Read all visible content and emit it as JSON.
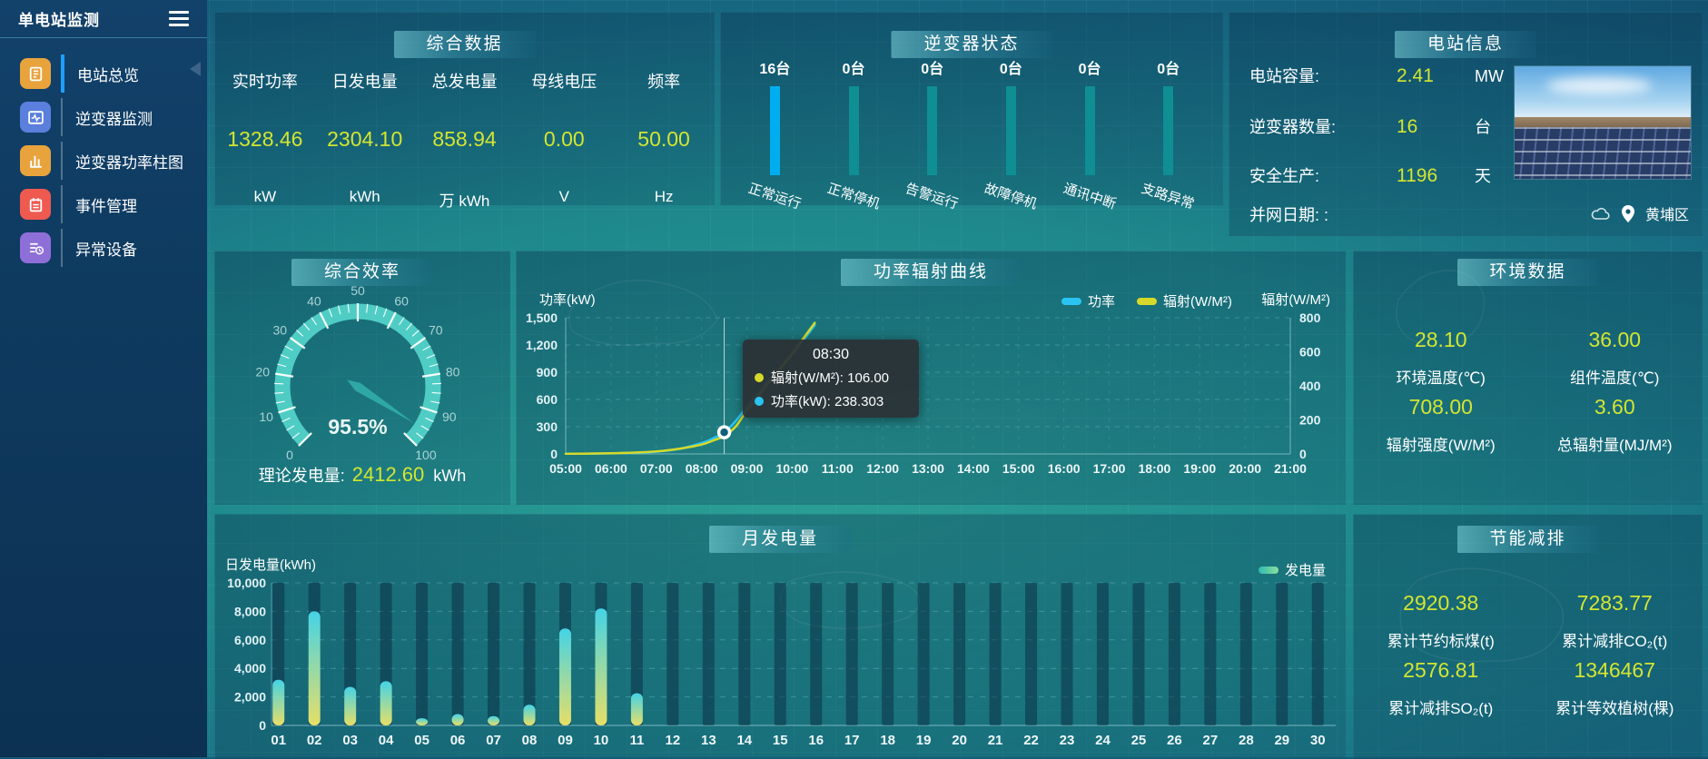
{
  "app": {
    "title": "单电站监测"
  },
  "sidebar": {
    "items": [
      {
        "label": "电站总览",
        "icon": "station-overview",
        "color": "#e8a33d",
        "active": true
      },
      {
        "label": "逆变器监测",
        "icon": "inverter-monitor",
        "color": "#5a7fdd",
        "active": false
      },
      {
        "label": "逆变器功率柱图",
        "icon": "power-bar-chart",
        "color": "#e8a33d",
        "active": false
      },
      {
        "label": "事件管理",
        "icon": "event-management",
        "color": "#ef5a50",
        "active": false
      },
      {
        "label": "异常设备",
        "icon": "abnormal-device",
        "color": "#8e6fd8",
        "active": false
      }
    ]
  },
  "summary": {
    "title": "综合数据",
    "metrics": [
      {
        "label": "实时功率",
        "value": "1328.46",
        "unit": "kW"
      },
      {
        "label": "日发电量",
        "value": "2304.10",
        "unit": "kWh"
      },
      {
        "label": "总发电量",
        "value": "858.94",
        "unit": "万 kWh"
      },
      {
        "label": "母线电压",
        "value": "0.00",
        "unit": "V"
      },
      {
        "label": "频率",
        "value": "50.00",
        "unit": "Hz"
      }
    ]
  },
  "inverter_status": {
    "title": "逆变器状态",
    "highlight_color": "#00aeef",
    "normal_color": "#0f8e93",
    "items": [
      {
        "count": "16台",
        "label": "正常运行",
        "highlight": true
      },
      {
        "count": "0台",
        "label": "正常停机",
        "highlight": false
      },
      {
        "count": "0台",
        "label": "告警运行",
        "highlight": false
      },
      {
        "count": "0台",
        "label": "故障停机",
        "highlight": false
      },
      {
        "count": "0台",
        "label": "通讯中断",
        "highlight": false
      },
      {
        "count": "0台",
        "label": "支路异常",
        "highlight": false
      }
    ]
  },
  "station_info": {
    "title": "电站信息",
    "rows": [
      {
        "label": "电站容量:",
        "value": "2.41",
        "unit": "MW"
      },
      {
        "label": "逆变器数量:",
        "value": "16",
        "unit": "台"
      },
      {
        "label": "安全生产:",
        "value": "1196",
        "unit": "天"
      },
      {
        "label": "并网日期:  :",
        "value": "",
        "unit": ""
      }
    ],
    "district": "黄埔区"
  },
  "efficiency": {
    "title": "综合效率",
    "value_label": "95.5%",
    "theory": {
      "label": "理论发电量:",
      "value": "2412.60",
      "unit": "kWh"
    }
  },
  "power_curve": {
    "title": "功率辐射曲线",
    "y_left_title": "功率(kW)",
    "y_right_title": "辐射(W/M²)",
    "legend": [
      {
        "label": "功率",
        "color": "#29c4f2"
      },
      {
        "label": "辐射(W/M²)",
        "color": "#d6d929"
      }
    ],
    "tooltip": {
      "time": "08:30",
      "items": [
        {
          "color": "#d6d929",
          "text": "辐射(W/M²): 106.00"
        },
        {
          "color": "#29c4f2",
          "text": "功率(kW): 238.303"
        }
      ]
    }
  },
  "environment": {
    "title": "环境数据",
    "metrics": [
      {
        "value": "28.10",
        "label": "环境温度(℃)"
      },
      {
        "value": "36.00",
        "label": "组件温度(℃)"
      },
      {
        "value": "708.00",
        "label": "辐射强度(W/M²)"
      },
      {
        "value": "3.60",
        "label": "总辐射量(MJ/M²)"
      }
    ]
  },
  "monthly": {
    "title": "月发电量",
    "y_title": "日发电量(kWh)",
    "legend_label": "发电量"
  },
  "saving": {
    "title": "节能减排",
    "metrics": [
      {
        "value": "2920.38",
        "label": "累计节约标煤(t)"
      },
      {
        "value": "7283.77",
        "label": "累计减排CO₂(t)"
      },
      {
        "value": "2576.81",
        "label": "累计减排SO₂(t)"
      },
      {
        "value": "1346467",
        "label": "累计等效植树(棵)"
      }
    ]
  },
  "chart_data": [
    {
      "id": "efficiency_gauge",
      "type": "gauge",
      "title": "综合效率",
      "min": 0,
      "max": 100,
      "value": 95.5,
      "unit": "%",
      "major_tick": 10,
      "minor_tick": 2.5,
      "start_angle": 225,
      "end_angle": -45,
      "band_color": "#4fcdc5",
      "needle_color": "#2fa8a5",
      "labels": [
        "0",
        "10",
        "20",
        "30",
        "40",
        "50",
        "60",
        "70",
        "80",
        "90",
        "100"
      ]
    },
    {
      "id": "power_radiation_curve",
      "type": "line",
      "title": "功率辐射曲线",
      "x_hours": [
        5,
        5.5,
        6,
        6.5,
        7,
        7.5,
        8,
        8.25,
        8.5,
        8.75,
        9,
        9.25,
        9.5,
        9.75,
        10,
        10.25,
        10.5
      ],
      "x_ticks": [
        "05:00",
        "06:00",
        "07:00",
        "08:00",
        "09:00",
        "10:00",
        "11:00",
        "12:00",
        "13:00",
        "14:00",
        "15:00",
        "16:00",
        "17:00",
        "18:00",
        "19:00",
        "20:00",
        "21:00"
      ],
      "series": [
        {
          "name": "功率",
          "axis": "left",
          "color": "#29c4f2",
          "values": [
            2,
            3,
            6,
            12,
            25,
            55,
            120,
            170,
            238.303,
            360,
            520,
            665,
            820,
            955,
            1090,
            1255,
            1420
          ]
        },
        {
          "name": "辐射(W/M²)",
          "axis": "right",
          "color": "#d6d929",
          "values": [
            1,
            2,
            4,
            8,
            15,
            30,
            55,
            78,
            106,
            160,
            255,
            335,
            425,
            505,
            590,
            680,
            770
          ]
        }
      ],
      "y_left": {
        "title": "功率(kW)",
        "min": 0,
        "max": 1500,
        "ticks": [
          "0",
          "300",
          "600",
          "900",
          "1,200",
          "1,500"
        ]
      },
      "y_right": {
        "title": "辐射(W/M²)",
        "min": 0,
        "max": 800,
        "ticks": [
          "0",
          "200",
          "400",
          "600",
          "800"
        ]
      },
      "highlight": {
        "x": 8.5,
        "label": "08:30",
        "power": 238.303,
        "radiation": 106.0
      },
      "grid": true,
      "legend_position": "top"
    },
    {
      "id": "monthly_generation",
      "type": "bar",
      "title": "月发电量",
      "categories": [
        "01",
        "02",
        "03",
        "04",
        "05",
        "06",
        "07",
        "08",
        "09",
        "10",
        "11",
        "12",
        "13",
        "14",
        "15",
        "16",
        "17",
        "18",
        "19",
        "20",
        "21",
        "22",
        "23",
        "24",
        "25",
        "26",
        "27",
        "28",
        "29",
        "30"
      ],
      "values": [
        3200,
        8000,
        2700,
        3100,
        500,
        800,
        650,
        1450,
        6800,
        8200,
        2250,
        0,
        0,
        0,
        0,
        0,
        0,
        0,
        0,
        0,
        0,
        0,
        0,
        0,
        0,
        0,
        0,
        0,
        0,
        0
      ],
      "xlabel": "",
      "ylabel": "日发电量(kWh)",
      "ylim": [
        0,
        10000
      ],
      "y_ticks": [
        "0",
        "2,000",
        "4,000",
        "6,000",
        "8,000",
        "10,000"
      ],
      "bar_gradient": [
        "#45d3e6",
        "#e6df67"
      ],
      "track_color": "rgba(10,42,64,0.5)",
      "legend": "发电量",
      "grid": true
    },
    {
      "id": "inverter_status_bars",
      "type": "bar",
      "title": "逆变器状态",
      "categories": [
        "正常运行",
        "正常停机",
        "告警运行",
        "故障停机",
        "通讯中断",
        "支路异常"
      ],
      "values": [
        16,
        0,
        0,
        0,
        0,
        0
      ],
      "unit": "台"
    }
  ]
}
